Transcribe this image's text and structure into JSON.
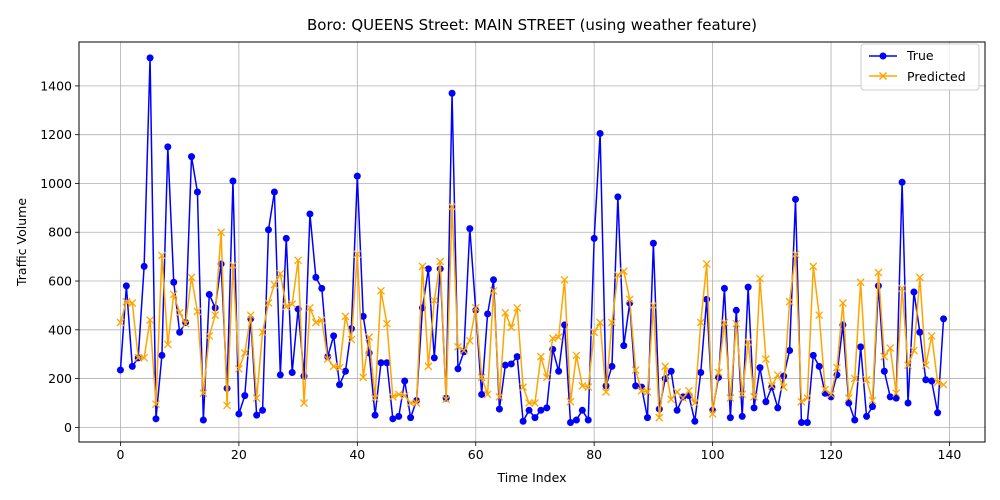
{
  "chart_data": {
    "type": "line",
    "title": "Boro: QUEENS Street: MAIN STREET (using weather feature)",
    "xlabel": "Time Index",
    "ylabel": "Traffic Volume",
    "xlim": [
      -7,
      146
    ],
    "ylim": [
      -60,
      1580
    ],
    "xticks": [
      0,
      20,
      40,
      60,
      80,
      100,
      120,
      140
    ],
    "yticks": [
      0,
      200,
      400,
      600,
      800,
      1000,
      1200,
      1400
    ],
    "grid": true,
    "legend_position": "top-right",
    "series": [
      {
        "name": "True",
        "color": "#0000ff",
        "marker": "circle",
        "values": [
          235,
          580,
          250,
          285,
          660,
          1515,
          35,
          295,
          1150,
          595,
          390,
          430,
          1110,
          965,
          30,
          545,
          490,
          670,
          160,
          1010,
          55,
          130,
          445,
          50,
          70,
          810,
          965,
          215,
          775,
          225,
          485,
          210,
          875,
          615,
          570,
          290,
          375,
          175,
          230,
          405,
          1030,
          455,
          305,
          50,
          265,
          265,
          35,
          45,
          190,
          40,
          110,
          490,
          650,
          285,
          650,
          120,
          1370,
          240,
          310,
          815,
          480,
          135,
          465,
          605,
          75,
          255,
          260,
          290,
          25,
          70,
          40,
          70,
          80,
          320,
          230,
          420,
          20,
          30,
          70,
          30,
          775,
          1205,
          170,
          250,
          945,
          335,
          510,
          170,
          165,
          40,
          755,
          75,
          200,
          230,
          70,
          125,
          130,
          25,
          225,
          525,
          70,
          205,
          570,
          40,
          480,
          45,
          575,
          80,
          245,
          105,
          165,
          80,
          210,
          315,
          935,
          20,
          20,
          295,
          250,
          140,
          125,
          215,
          420,
          100,
          30,
          330,
          45,
          85,
          580,
          230,
          125,
          120,
          1005,
          100,
          555,
          390,
          195,
          190,
          60,
          445
        ]
      },
      {
        "name": "Predicted",
        "color": "#ffa500",
        "marker": "x",
        "values": [
          430,
          515,
          510,
          285,
          285,
          440,
          95,
          705,
          340,
          545,
          470,
          425,
          615,
          475,
          140,
          375,
          460,
          800,
          90,
          665,
          240,
          305,
          460,
          120,
          390,
          510,
          585,
          630,
          495,
          505,
          685,
          100,
          490,
          430,
          440,
          280,
          250,
          245,
          455,
          360,
          710,
          205,
          370,
          120,
          560,
          425,
          125,
          135,
          130,
          100,
          100,
          660,
          250,
          520,
          680,
          115,
          905,
          330,
          315,
          355,
          490,
          205,
          135,
          560,
          125,
          470,
          410,
          490,
          165,
          100,
          100,
          290,
          205,
          365,
          370,
          605,
          105,
          295,
          170,
          165,
          390,
          430,
          145,
          430,
          625,
          640,
          525,
          235,
          150,
          145,
          500,
          40,
          250,
          115,
          145,
          120,
          150,
          100,
          430,
          670,
          55,
          225,
          430,
          120,
          425,
          135,
          350,
          125,
          610,
          280,
          170,
          215,
          165,
          515,
          710,
          105,
          120,
          660,
          460,
          155,
          135,
          245,
          510,
          120,
          200,
          595,
          195,
          110,
          635,
          290,
          325,
          140,
          570,
          255,
          315,
          615,
          255,
          375,
          185,
          175
        ]
      }
    ]
  }
}
